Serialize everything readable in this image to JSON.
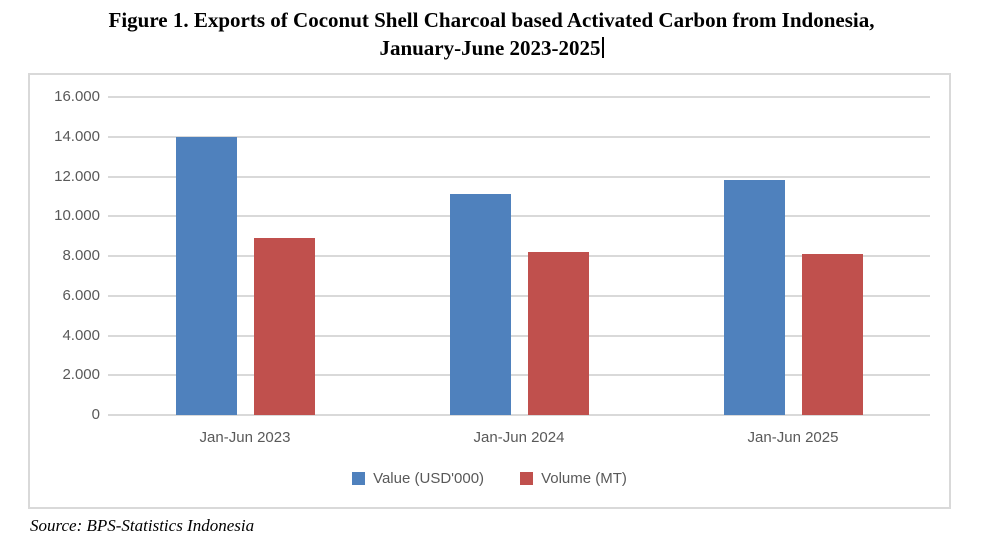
{
  "figure": {
    "title_line1": "Figure 1. Exports of Coconut Shell Charcoal based Activated Carbon from Indonesia,",
    "title_line2": "January-June 2023-2025",
    "source": "Source: BPS-Statistics Indonesia"
  },
  "colors": {
    "value_series": "#4F81BD",
    "volume_series": "#C0504D",
    "gridline": "#D9D9D9",
    "axis_text": "#595959"
  },
  "chart_data": {
    "type": "bar",
    "title": "Figure 1. Exports of Coconut Shell Charcoal based Activated Carbon from Indonesia, January-June 2023-2025",
    "categories": [
      "Jan-Jun 2023",
      "Jan-Jun 2024",
      "Jan-Jun 2025"
    ],
    "series": [
      {
        "name": "Value (USD'000)",
        "color": "#4F81BD",
        "values": [
          14000,
          11100,
          11800
        ]
      },
      {
        "name": "Volume (MT)",
        "color": "#C0504D",
        "values": [
          8900,
          8200,
          8100
        ]
      }
    ],
    "xlabel": "",
    "ylabel": "",
    "ylim": [
      0,
      16000
    ],
    "ytick_step": 2000,
    "ytick_labels": [
      "0",
      "2.000",
      "4.000",
      "6.000",
      "8.000",
      "10.000",
      "12.000",
      "14.000",
      "16.000"
    ],
    "grid": true,
    "legend_position": "bottom"
  }
}
